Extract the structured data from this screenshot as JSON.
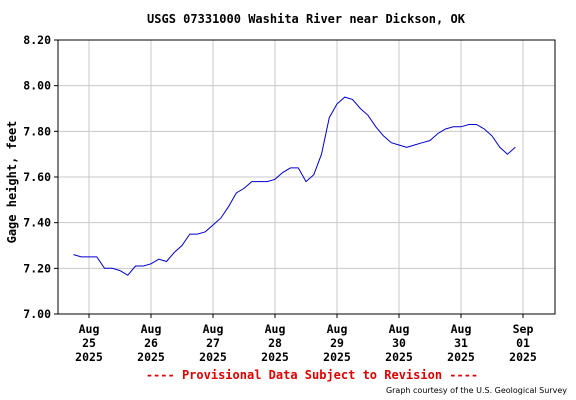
{
  "chart_data": {
    "type": "line",
    "title": "USGS 07331000 Washita River near Dickson, OK",
    "ylabel": "Gage height, feet",
    "xlabel": "",
    "ylim": [
      7.0,
      8.2
    ],
    "y_ticks": [
      "7.00",
      "7.20",
      "7.40",
      "7.60",
      "7.80",
      "8.00",
      "8.20"
    ],
    "x_ticks": [
      {
        "month": "Aug",
        "day": "25",
        "year": "2025"
      },
      {
        "month": "Aug",
        "day": "26",
        "year": "2025"
      },
      {
        "month": "Aug",
        "day": "27",
        "year": "2025"
      },
      {
        "month": "Aug",
        "day": "28",
        "year": "2025"
      },
      {
        "month": "Aug",
        "day": "29",
        "year": "2025"
      },
      {
        "month": "Aug",
        "day": "30",
        "year": "2025"
      },
      {
        "month": "Aug",
        "day": "31",
        "year": "2025"
      },
      {
        "month": "Sep",
        "day": "01",
        "year": "2025"
      }
    ],
    "grid": true,
    "line_color": "#0000cc",
    "series": [
      {
        "x": [
          "2025-08-24 18:00",
          "2025-08-24 21:00",
          "2025-08-25 00:00",
          "2025-08-25 03:00",
          "2025-08-25 06:00",
          "2025-08-25 09:00",
          "2025-08-25 12:00",
          "2025-08-25 15:00",
          "2025-08-25 18:00",
          "2025-08-25 21:00",
          "2025-08-26 00:00",
          "2025-08-26 03:00",
          "2025-08-26 06:00",
          "2025-08-26 09:00",
          "2025-08-26 12:00",
          "2025-08-26 15:00",
          "2025-08-26 18:00",
          "2025-08-26 21:00",
          "2025-08-27 00:00",
          "2025-08-27 03:00",
          "2025-08-27 06:00",
          "2025-08-27 09:00",
          "2025-08-27 12:00",
          "2025-08-27 15:00",
          "2025-08-27 18:00",
          "2025-08-27 21:00",
          "2025-08-28 00:00",
          "2025-08-28 03:00",
          "2025-08-28 06:00",
          "2025-08-28 09:00",
          "2025-08-28 12:00",
          "2025-08-28 15:00",
          "2025-08-28 18:00",
          "2025-08-28 21:00",
          "2025-08-29 00:00",
          "2025-08-29 03:00",
          "2025-08-29 06:00",
          "2025-08-29 09:00",
          "2025-08-29 12:00",
          "2025-08-29 15:00",
          "2025-08-29 18:00",
          "2025-08-29 21:00",
          "2025-08-30 00:00",
          "2025-08-30 03:00",
          "2025-08-30 06:00",
          "2025-08-30 09:00",
          "2025-08-30 12:00",
          "2025-08-30 15:00",
          "2025-08-30 18:00",
          "2025-08-30 21:00",
          "2025-08-31 00:00",
          "2025-08-31 03:00",
          "2025-08-31 06:00",
          "2025-08-31 09:00",
          "2025-08-31 12:00",
          "2025-08-31 15:00",
          "2025-08-31 18:00",
          "2025-08-31 21:00"
        ],
        "values": [
          7.26,
          7.25,
          7.25,
          7.25,
          7.2,
          7.2,
          7.19,
          7.17,
          7.21,
          7.21,
          7.22,
          7.24,
          7.23,
          7.27,
          7.3,
          7.35,
          7.35,
          7.36,
          7.39,
          7.42,
          7.47,
          7.53,
          7.55,
          7.58,
          7.58,
          7.58,
          7.59,
          7.62,
          7.64,
          7.64,
          7.58,
          7.61,
          7.7,
          7.86,
          7.92,
          7.95,
          7.94,
          7.9,
          7.87,
          7.82,
          7.78,
          7.75,
          7.74,
          7.73,
          7.74,
          7.75,
          7.76,
          7.79,
          7.81,
          7.82,
          7.82,
          7.83,
          7.83,
          7.81,
          7.78,
          7.73,
          7.7,
          7.73
        ]
      }
    ]
  },
  "footer": {
    "provisional": "---- Provisional Data Subject to Revision ----",
    "credit": "Graph courtesy of the U.S. Geological Survey"
  }
}
